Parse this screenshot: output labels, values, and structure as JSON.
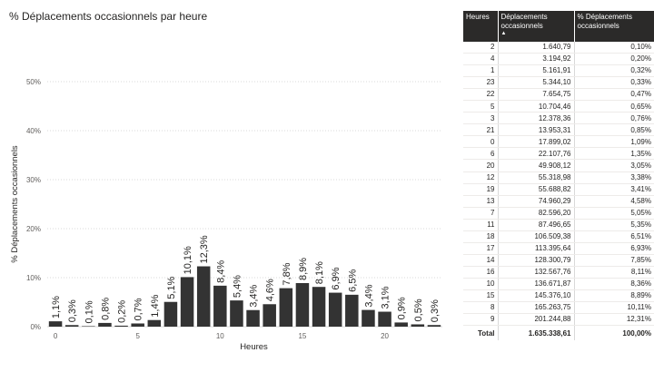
{
  "chart_data": {
    "type": "bar",
    "title": "% Déplacements occasionnels par heure",
    "xlabel": "Heures",
    "ylabel": "% Déplacements occasionnels",
    "ylim": [
      0,
      50
    ],
    "yticks": [
      0,
      10,
      20,
      30,
      40,
      50
    ],
    "ytick_labels": [
      "0%",
      "10%",
      "20%",
      "30%",
      "40%",
      "50%"
    ],
    "xticks": [
      0,
      5,
      10,
      15,
      20
    ],
    "bar_color": "#333333",
    "grid": true,
    "x": [
      0,
      1,
      2,
      3,
      4,
      5,
      6,
      7,
      8,
      9,
      10,
      11,
      12,
      13,
      14,
      15,
      16,
      17,
      18,
      19,
      20,
      21,
      22,
      23
    ],
    "values": [
      1.09,
      0.32,
      0.1,
      0.76,
      0.2,
      0.65,
      1.35,
      5.05,
      10.11,
      12.31,
      8.36,
      5.35,
      3.38,
      4.58,
      7.85,
      8.89,
      8.11,
      6.93,
      6.51,
      3.41,
      3.05,
      0.85,
      0.47,
      0.33
    ],
    "data_labels": [
      "1,1%",
      "0,3%",
      "0,1%",
      "0,8%",
      "0,2%",
      "0,7%",
      "1,4%",
      "5,1%",
      "10,1%",
      "12,3%",
      "8,4%",
      "5,4%",
      "3,4%",
      "4,6%",
      "7,8%",
      "8,9%",
      "8,1%",
      "6,9%",
      "6,5%",
      "3,4%",
      "3,1%",
      "0,9%",
      "0,5%",
      "0,3%"
    ]
  },
  "table": {
    "headers": [
      "Heures",
      "Déplacements occasionnels",
      "% Déplacements occasionnels"
    ],
    "sort_indicator": "▲",
    "header_bg": "#2b2a29",
    "rows": [
      [
        "2",
        "1.640,79",
        "0,10%"
      ],
      [
        "4",
        "3.194,92",
        "0,20%"
      ],
      [
        "1",
        "5.161,91",
        "0,32%"
      ],
      [
        "23",
        "5.344,10",
        "0,33%"
      ],
      [
        "22",
        "7.654,75",
        "0,47%"
      ],
      [
        "5",
        "10.704,46",
        "0,65%"
      ],
      [
        "3",
        "12.378,36",
        "0,76%"
      ],
      [
        "21",
        "13.953,31",
        "0,85%"
      ],
      [
        "0",
        "17.899,02",
        "1,09%"
      ],
      [
        "6",
        "22.107,76",
        "1,35%"
      ],
      [
        "20",
        "49.908,12",
        "3,05%"
      ],
      [
        "12",
        "55.318,98",
        "3,38%"
      ],
      [
        "19",
        "55.688,82",
        "3,41%"
      ],
      [
        "13",
        "74.960,29",
        "4,58%"
      ],
      [
        "7",
        "82.596,20",
        "5,05%"
      ],
      [
        "11",
        "87.496,65",
        "5,35%"
      ],
      [
        "18",
        "106.509,38",
        "6,51%"
      ],
      [
        "17",
        "113.395,64",
        "6,93%"
      ],
      [
        "14",
        "128.300,79",
        "7,85%"
      ],
      [
        "16",
        "132.567,76",
        "8,11%"
      ],
      [
        "10",
        "136.671,87",
        "8,36%"
      ],
      [
        "15",
        "145.376,10",
        "8,89%"
      ],
      [
        "8",
        "165.263,75",
        "10,11%"
      ],
      [
        "9",
        "201.244,88",
        "12,31%"
      ]
    ],
    "total": [
      "Total",
      "1.635.338,61",
      "100,00%"
    ]
  }
}
